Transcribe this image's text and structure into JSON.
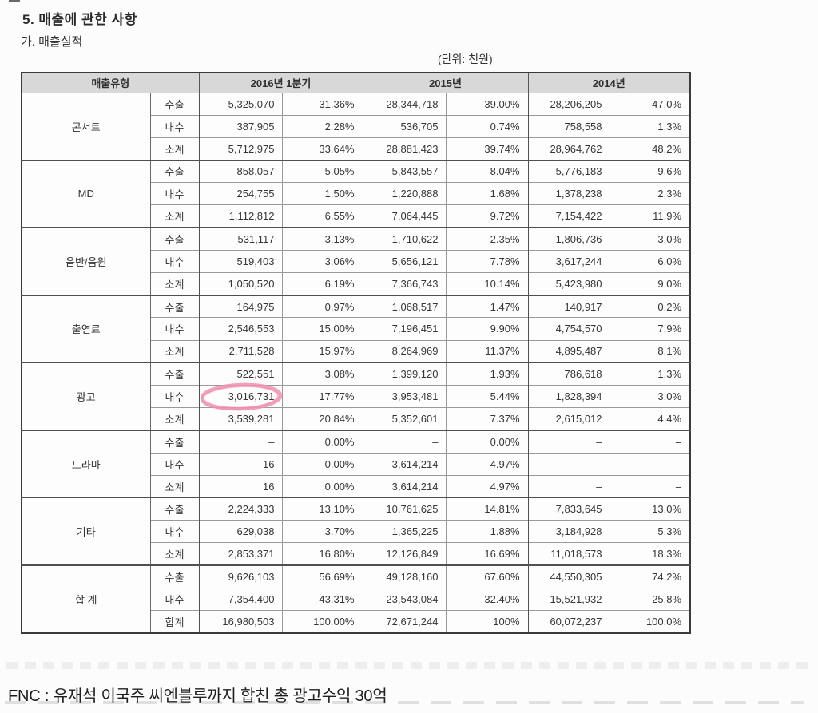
{
  "page": {
    "title": "5. 매출에 관한 사항",
    "subtitle": "가. 매출실적",
    "unit_label": "(단위: 천원)",
    "caption": "FNC : 유재석 이국주 씨엔블루까지 합친 총 광고수익 30억"
  },
  "table": {
    "header": {
      "type_col": "매출유형",
      "year_cols": [
        "2016년 1분기",
        "2015년",
        "2014년"
      ]
    },
    "groups": [
      {
        "name": "콘서트",
        "rows": [
          {
            "label": "수출",
            "cells": [
              "5,325,070",
              "31.36%",
              "28,344,718",
              "39.00%",
              "28,206,205",
              "47.0%"
            ]
          },
          {
            "label": "내수",
            "cells": [
              "387,905",
              "2.28%",
              "536,705",
              "0.74%",
              "758,558",
              "1.3%"
            ]
          },
          {
            "label": "소계",
            "cells": [
              "5,712,975",
              "33.64%",
              "28,881,423",
              "39.74%",
              "28,964,762",
              "48.2%"
            ]
          }
        ]
      },
      {
        "name": "MD",
        "rows": [
          {
            "label": "수출",
            "cells": [
              "858,057",
              "5.05%",
              "5,843,557",
              "8.04%",
              "5,776,183",
              "9.6%"
            ]
          },
          {
            "label": "내수",
            "cells": [
              "254,755",
              "1.50%",
              "1,220,888",
              "1.68%",
              "1,378,238",
              "2.3%"
            ]
          },
          {
            "label": "소계",
            "cells": [
              "1,112,812",
              "6.55%",
              "7,064,445",
              "9.72%",
              "7,154,422",
              "11.9%"
            ]
          }
        ]
      },
      {
        "name": "음반/음원",
        "rows": [
          {
            "label": "수출",
            "cells": [
              "531,117",
              "3.13%",
              "1,710,622",
              "2.35%",
              "1,806,736",
              "3.0%"
            ]
          },
          {
            "label": "내수",
            "cells": [
              "519,403",
              "3.06%",
              "5,656,121",
              "7.78%",
              "3,617,244",
              "6.0%"
            ]
          },
          {
            "label": "소계",
            "cells": [
              "1,050,520",
              "6.19%",
              "7,366,743",
              "10.14%",
              "5,423,980",
              "9.0%"
            ]
          }
        ]
      },
      {
        "name": "출연료",
        "rows": [
          {
            "label": "수출",
            "cells": [
              "164,975",
              "0.97%",
              "1,068,517",
              "1.47%",
              "140,917",
              "0.2%"
            ]
          },
          {
            "label": "내수",
            "cells": [
              "2,546,553",
              "15.00%",
              "7,196,451",
              "9.90%",
              "4,754,570",
              "7.9%"
            ]
          },
          {
            "label": "소계",
            "cells": [
              "2,711,528",
              "15.97%",
              "8,264,969",
              "11.37%",
              "4,895,487",
              "8.1%"
            ]
          }
        ]
      },
      {
        "name": "광고",
        "rows": [
          {
            "label": "수출",
            "cells": [
              "522,551",
              "3.08%",
              "1,399,120",
              "1.93%",
              "786,618",
              "1.3%"
            ]
          },
          {
            "label": "내수",
            "cells": [
              "3,016,731",
              "17.77%",
              "3,953,481",
              "5.44%",
              "1,828,394",
              "3.0%"
            ]
          },
          {
            "label": "소계",
            "cells": [
              "3,539,281",
              "20.84%",
              "5,352,601",
              "7.37%",
              "2,615,012",
              "4.4%"
            ]
          }
        ]
      },
      {
        "name": "드라마",
        "rows": [
          {
            "label": "수출",
            "cells": [
              "–",
              "0.00%",
              "–",
              "0.00%",
              "–",
              "–"
            ]
          },
          {
            "label": "내수",
            "cells": [
              "16",
              "0.00%",
              "3,614,214",
              "4.97%",
              "–",
              "–"
            ]
          },
          {
            "label": "소계",
            "cells": [
              "16",
              "0.00%",
              "3,614,214",
              "4.97%",
              "–",
              "–"
            ]
          }
        ]
      },
      {
        "name": "기타",
        "rows": [
          {
            "label": "수출",
            "cells": [
              "2,224,333",
              "13.10%",
              "10,761,625",
              "14.81%",
              "7,833,645",
              "13.0%"
            ]
          },
          {
            "label": "내수",
            "cells": [
              "629,038",
              "3.70%",
              "1,365,225",
              "1.88%",
              "3,184,928",
              "5.3%"
            ]
          },
          {
            "label": "소계",
            "cells": [
              "2,853,371",
              "16.80%",
              "12,126,849",
              "16.69%",
              "11,018,573",
              "18.3%"
            ]
          }
        ]
      },
      {
        "name": "합 계",
        "rows": [
          {
            "label": "수출",
            "cells": [
              "9,626,103",
              "56.69%",
              "49,128,160",
              "67.60%",
              "44,550,305",
              "74.2%"
            ]
          },
          {
            "label": "내수",
            "cells": [
              "7,354,400",
              "43.31%",
              "23,543,084",
              "32.40%",
              "15,521,932",
              "25.8%"
            ]
          },
          {
            "label": "합계",
            "cells": [
              "16,980,503",
              "100.00%",
              "72,671,244",
              "100%",
              "60,072,237",
              "100.0%"
            ]
          }
        ]
      }
    ]
  },
  "annotation": {
    "type": "hand-drawn-ellipse",
    "highlighted_value": "3,016,731",
    "group": "광고",
    "row": "내수",
    "column": "2016년 1분기",
    "group_index": 4,
    "row_index": 1,
    "cell_index": 0,
    "color": "#f08fb0"
  },
  "colors": {
    "header_bg": "#d8d8d8",
    "outer_border": "#3b3b3b",
    "group_border": "#4f4f4f",
    "row_border": "#9a9a9a",
    "text": "#363636",
    "highlight": "#f08fb0"
  }
}
